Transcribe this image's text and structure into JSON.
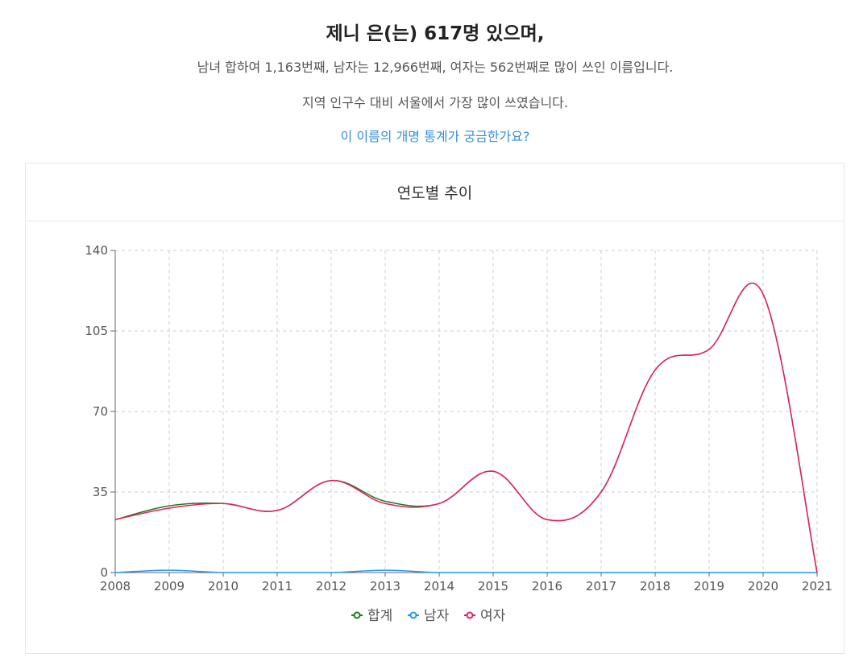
{
  "header": {
    "title": "제니 은(는) 617명 있으며,",
    "rank_line": "남녀 합하여 1,163번째, 남자는 12,966번째, 여자는 562번째로 많이 쓰인 이름입니다.",
    "region_line": "지역 인구수 대비 서울에서 가장 많이 쓰였습니다.",
    "link_text": "이 이름의 개명 통계가 궁금한가요?"
  },
  "card": {
    "title": "연도별 추이"
  },
  "colors": {
    "total": "#1a7f1a",
    "male": "#2196f3",
    "female": "#e91e63",
    "grid": "#cccccc",
    "axis": "#666666"
  },
  "chart_data": {
    "type": "line",
    "title": "연도별 추이",
    "x": [
      "2008",
      "2009",
      "2010",
      "2011",
      "2012",
      "2013",
      "2014",
      "2015",
      "2016",
      "2017",
      "2018",
      "2019",
      "2020",
      "2021"
    ],
    "ylim": [
      0,
      140
    ],
    "yticks": [
      0,
      35,
      70,
      105,
      140
    ],
    "grid": true,
    "legend_position": "bottom-center",
    "series": [
      {
        "name": "합계",
        "values": [
          23,
          29,
          30,
          27,
          40,
          31,
          30,
          44,
          23,
          35,
          88,
          97,
          121,
          0
        ]
      },
      {
        "name": "남자",
        "values": [
          0,
          1,
          0,
          0,
          0,
          1,
          0,
          0,
          0,
          0,
          0,
          0,
          0,
          0
        ]
      },
      {
        "name": "여자",
        "values": [
          23,
          28,
          30,
          27,
          40,
          30,
          30,
          44,
          23,
          35,
          88,
          97,
          121,
          0
        ]
      }
    ]
  }
}
